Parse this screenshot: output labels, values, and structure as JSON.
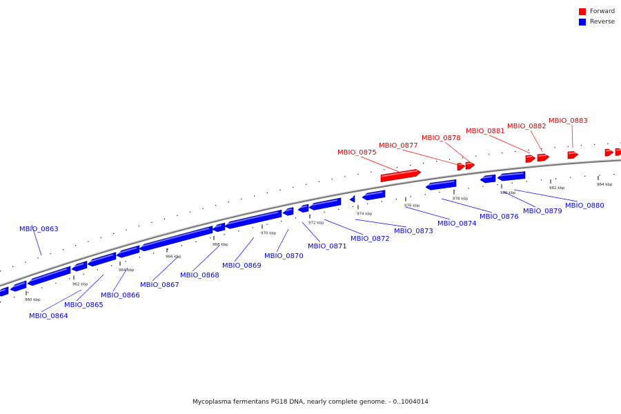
{
  "legend": [
    {
      "label": "Forward",
      "color": "#ff0000"
    },
    {
      "label": "Reverse",
      "color": "#0000ff"
    }
  ],
  "caption": "Mycoplasma fermentans PG18 DNA, nearly complete genome. - 0..1004014",
  "colors": {
    "forward": "#ff0000",
    "reverse": "#0000ff",
    "backbone": "#888888",
    "tick": "#000000"
  },
  "ticks": [
    "960 kbp",
    "962 kbp",
    "964 kbp",
    "966 kbp",
    "968 kbp",
    "970 kbp",
    "972 kbp",
    "974 kbp",
    "976 kbp",
    "978 kbp",
    "980 kbp",
    "982 kbp",
    "984 kbp"
  ],
  "forward_genes": [
    "MBIO_0875",
    "MBIO_0877",
    "MBIO_0878",
    "MBIO_0881",
    "MBIO_0882",
    "MBIO_0883"
  ],
  "reverse_genes": [
    "MBIO_0863",
    "MBIO_0864",
    "MBIO_0865",
    "MBIO_0866",
    "MBIO_0867",
    "MBIO_0868",
    "MBIO_0869",
    "MBIO_0870",
    "MBIO_0871",
    "MBIO_0872",
    "MBIO_0873",
    "MBIO_0874",
    "MBIO_0876",
    "MBIO_0879",
    "MBIO_0880"
  ]
}
